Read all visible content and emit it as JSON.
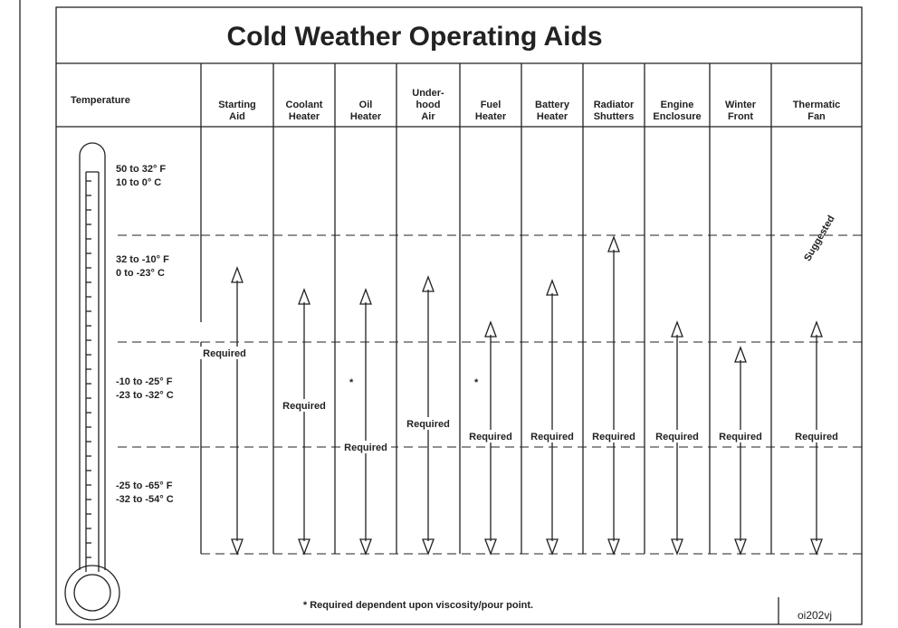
{
  "header": {
    "title": "Cold Weather Operating Aids",
    "temperature_heading": "Temperature"
  },
  "temperature_ranges": [
    {
      "fahrenheit": "50 to 32° F",
      "celsius": "10 to   0° C"
    },
    {
      "fahrenheit": "32 to -10° F",
      "celsius": "0 to -23° C"
    },
    {
      "fahrenheit": "-10 to -25° F",
      "celsius": "-23 to -32° C"
    },
    {
      "fahrenheit": "-25 to -65° F",
      "celsius": "-32 to -54° C"
    }
  ],
  "columns": [
    {
      "heading": [
        "Starting",
        "Aid"
      ],
      "status": "Required"
    },
    {
      "heading": [
        "Coolant",
        "Heater"
      ],
      "status": "Required"
    },
    {
      "heading": [
        "Oil",
        "Heater"
      ],
      "status": "Required",
      "note": "*"
    },
    {
      "heading": [
        "Under-",
        "hood",
        "Air"
      ],
      "status": "Required"
    },
    {
      "heading": [
        "Fuel",
        "Heater"
      ],
      "status": "Required",
      "note": "*"
    },
    {
      "heading": [
        "Battery",
        "Heater"
      ],
      "status": "Required"
    },
    {
      "heading": [
        "Radiator",
        "Shutters"
      ],
      "status": "Required"
    },
    {
      "heading": [
        "Engine",
        "Enclosure"
      ],
      "status": "Required"
    },
    {
      "heading": [
        "Winter",
        "Front"
      ],
      "status": "Required"
    },
    {
      "heading": [
        "Thermatic",
        "Fan"
      ],
      "status": "Required",
      "extra": "Suggested"
    }
  ],
  "footnote": "* Required dependent upon viscosity/pour point.",
  "figure_code": "oi202vj"
}
